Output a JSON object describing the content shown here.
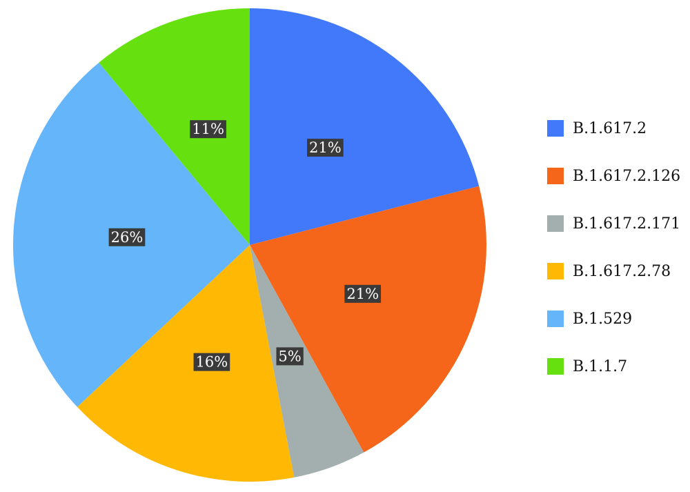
{
  "chart_data": {
    "type": "pie",
    "title": "",
    "categories": [
      "B.1.617.2",
      "B.1.617.2.126",
      "B.1.617.2.171",
      "B.1.617.2.78",
      "B.1.529",
      "B.1.1.7"
    ],
    "values": [
      21,
      21,
      5,
      16,
      26,
      11
    ],
    "value_labels": [
      "21%",
      "21%",
      "5%",
      "16%",
      "26%",
      "11%"
    ],
    "colors": [
      "#4279FB",
      "#F5661A",
      "#A3AFAE",
      "#FFB905",
      "#64B5FA",
      "#66E10F"
    ],
    "start_angle": "12 o'clock",
    "direction": "clockwise",
    "legend": "right"
  }
}
